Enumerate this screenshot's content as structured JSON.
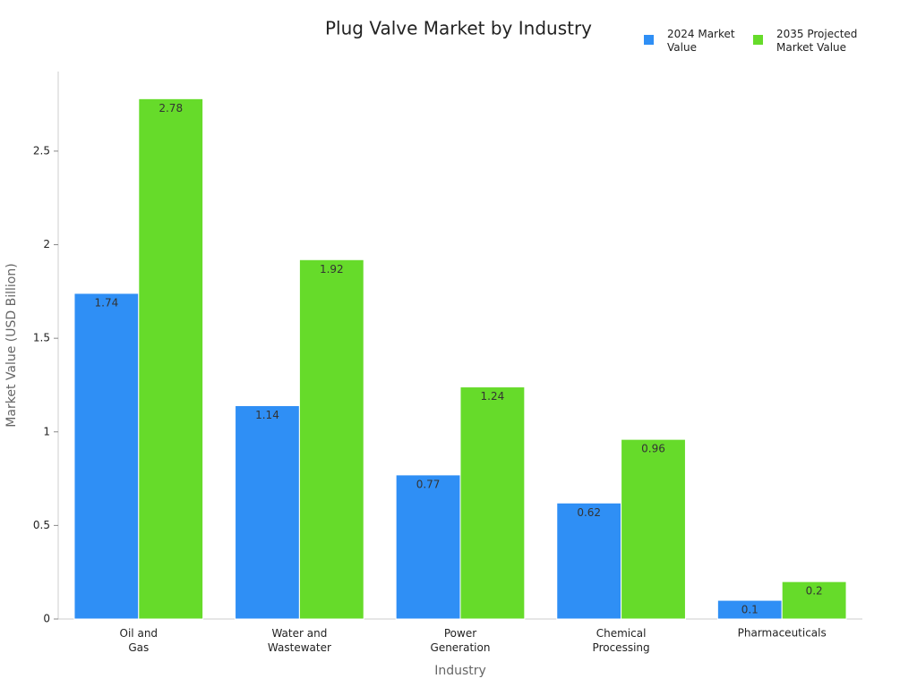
{
  "chart_data": {
    "type": "bar",
    "title": "Plug Valve Market by Industry",
    "x_label": "Industry",
    "y_label": "Market Value (USD Billion)",
    "categories": [
      "Oil and\nGas",
      "Water and\nWastewater",
      "Power\nGeneration",
      "Chemical\nProcessing",
      "Pharmaceuticals"
    ],
    "series": [
      {
        "name": "2024 Market\nValue",
        "color": "#2f8ff5",
        "values": [
          1.74,
          1.14,
          0.77,
          0.62,
          0.1
        ]
      },
      {
        "name": "2035 Projected\nMarket Value",
        "color": "#66db2a",
        "values": [
          2.78,
          1.92,
          1.24,
          0.96,
          0.2
        ]
      }
    ],
    "ylim": [
      0,
      2.925
    ],
    "yticks": [
      0,
      0.5,
      1,
      1.5,
      2,
      2.5
    ],
    "grid": false,
    "legend": "top-right"
  }
}
